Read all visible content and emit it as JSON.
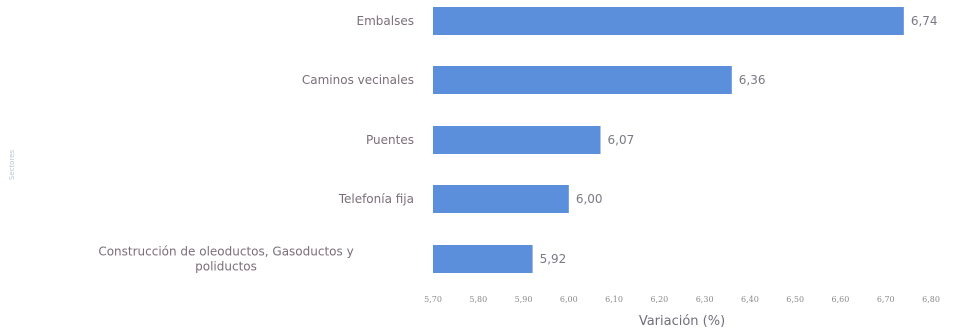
{
  "chart_data": {
    "type": "bar",
    "orientation": "horizontal",
    "categories": [
      "Embalses",
      "Caminos vecinales",
      "Puentes",
      "Telefonía fija",
      [
        "Construcción de oleoductos, Gasoductos y",
        "poliductos"
      ]
    ],
    "values": [
      6.74,
      6.36,
      6.07,
      6.0,
      5.92
    ],
    "value_labels": [
      "6,74",
      "6,36",
      "6,07",
      "6,00",
      "5,92"
    ],
    "xlabel": "Variación (%)",
    "ylabel": "Sectores",
    "xlim": [
      5.7,
      6.8
    ],
    "x_ticks": [
      5.7,
      5.8,
      5.9,
      6.0,
      6.1,
      6.2,
      6.3,
      6.4,
      6.5,
      6.6,
      6.7,
      6.8
    ],
    "x_tick_labels": [
      "5,70",
      "5,80",
      "5,90",
      "6,00",
      "6,10",
      "6,20",
      "6,30",
      "6,40",
      "6,50",
      "6,60",
      "6,70",
      "6,80"
    ],
    "grid": false,
    "legend": "none",
    "bar_color": "#5b8fdc"
  }
}
